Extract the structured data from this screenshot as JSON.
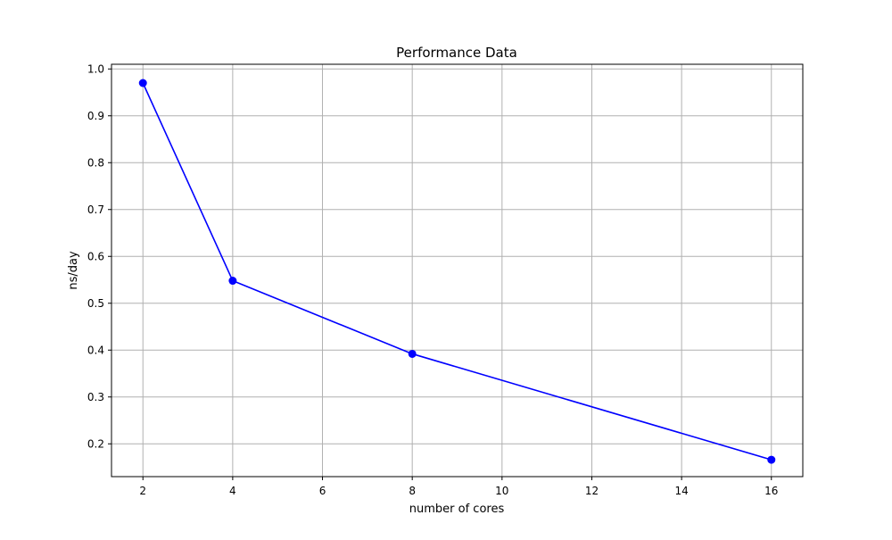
{
  "chart_data": {
    "type": "line",
    "title": "Performance Data",
    "xlabel": "number of cores",
    "ylabel": "ns/day",
    "x_ticks": [
      2,
      4,
      6,
      8,
      10,
      12,
      14,
      16
    ],
    "y_ticks": [
      0.2,
      0.3,
      0.4,
      0.5,
      0.6,
      0.7,
      0.8,
      0.9,
      1.0
    ],
    "x_tick_labels": [
      "2",
      "4",
      "6",
      "8",
      "10",
      "12",
      "14",
      "16"
    ],
    "y_tick_labels": [
      "0.2",
      "0.3",
      "0.4",
      "0.5",
      "0.6",
      "0.7",
      "0.8",
      "0.9",
      "1.0"
    ],
    "xlim": [
      1.3,
      16.7
    ],
    "ylim": [
      0.13,
      1.01
    ],
    "grid": true,
    "series": [
      {
        "x": [
          2,
          4,
          8,
          16
        ],
        "y": [
          0.97,
          0.548,
          0.392,
          0.166
        ],
        "color": "#0000ff",
        "marker": "circle"
      }
    ]
  }
}
